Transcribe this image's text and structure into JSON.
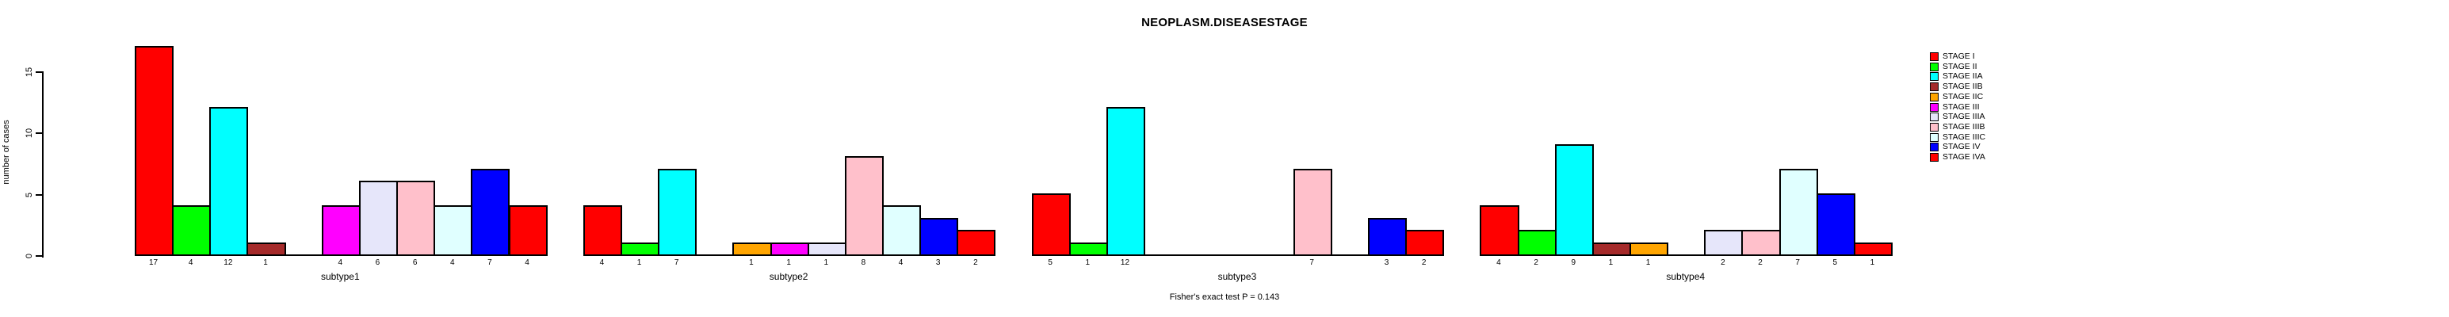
{
  "title": "NEOPLASM.DISEASESTAGE",
  "footer": "Fisher's exact test P = 0.143",
  "y_axis": {
    "label": "number of cases",
    "ticks": [
      0,
      5,
      10,
      15
    ]
  },
  "chart_data": {
    "type": "bar",
    "grouping": "grouped",
    "title": "NEOPLASM.DISEASESTAGE",
    "xlabel": "",
    "ylabel": "number of cases",
    "ylim": [
      0,
      15
    ],
    "grid": false,
    "legend_position": "right",
    "bar_value_labels": true,
    "annotation": "Fisher's exact test P = 0.143",
    "categories": [
      "subtype1",
      "subtype2",
      "subtype3",
      "subtype4"
    ],
    "series": [
      {
        "name": "STAGE I",
        "color": "#FF0000",
        "values": [
          17,
          4,
          5,
          4
        ]
      },
      {
        "name": "STAGE II",
        "color": "#00FF00",
        "values": [
          4,
          1,
          1,
          2
        ]
      },
      {
        "name": "STAGE IIA",
        "color": "#00FFFF",
        "values": [
          12,
          7,
          12,
          9
        ]
      },
      {
        "name": "STAGE IIB",
        "color": "#A52A2A",
        "values": [
          1,
          0,
          0,
          1
        ]
      },
      {
        "name": "STAGE IIC",
        "color": "#FFA500",
        "values": [
          0,
          1,
          0,
          1
        ]
      },
      {
        "name": "STAGE III",
        "color": "#FF00FF",
        "values": [
          4,
          1,
          0,
          0
        ]
      },
      {
        "name": "STAGE IIIA",
        "color": "#E6E6FA",
        "values": [
          6,
          1,
          0,
          2
        ]
      },
      {
        "name": "STAGE IIIB",
        "color": "#FFC0CB",
        "values": [
          6,
          8,
          7,
          2
        ]
      },
      {
        "name": "STAGE IIIC",
        "color": "#E0FFFF",
        "values": [
          4,
          4,
          0,
          7
        ]
      },
      {
        "name": "STAGE IV",
        "color": "#0000FF",
        "values": [
          7,
          3,
          3,
          5
        ]
      },
      {
        "name": "STAGE IVA",
        "color": "#FF0000",
        "values": [
          4,
          2,
          2,
          1
        ]
      }
    ]
  }
}
